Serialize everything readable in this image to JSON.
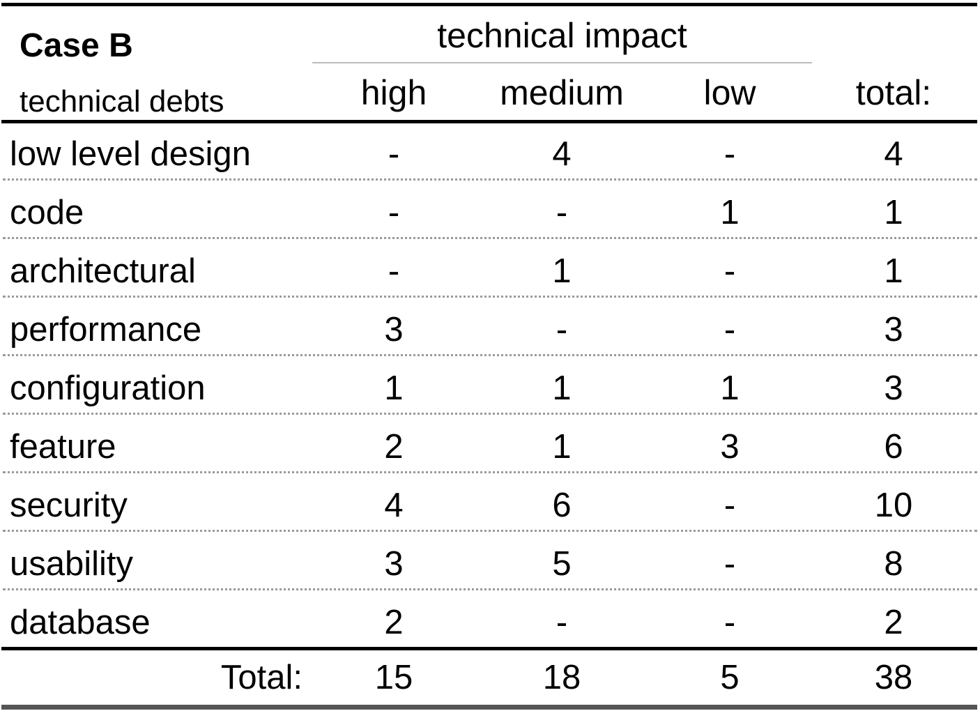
{
  "chart_data": {
    "type": "table",
    "title": "Case B",
    "stub_header": "technical debts",
    "column_group": "technical impact",
    "columns": [
      "high",
      "medium",
      "low",
      "total:"
    ],
    "rows": [
      {
        "label": "low level design",
        "values": [
          "-",
          "4",
          "-",
          "4"
        ]
      },
      {
        "label": "code",
        "values": [
          "-",
          "-",
          "1",
          "1"
        ]
      },
      {
        "label": "architectural",
        "values": [
          "-",
          "1",
          "-",
          "1"
        ]
      },
      {
        "label": "performance",
        "values": [
          "3",
          "-",
          "-",
          "3"
        ]
      },
      {
        "label": "configuration",
        "values": [
          "1",
          "1",
          "1",
          "3"
        ]
      },
      {
        "label": "feature",
        "values": [
          "2",
          "1",
          "3",
          "6"
        ]
      },
      {
        "label": "security",
        "values": [
          "4",
          "6",
          "-",
          "10"
        ]
      },
      {
        "label": "usability",
        "values": [
          "3",
          "5",
          "-",
          "8"
        ]
      },
      {
        "label": "database",
        "values": [
          "2",
          "-",
          "-",
          "2"
        ]
      }
    ],
    "totals": {
      "label": "Total:",
      "values": [
        "15",
        "18",
        "5",
        "38"
      ]
    }
  }
}
